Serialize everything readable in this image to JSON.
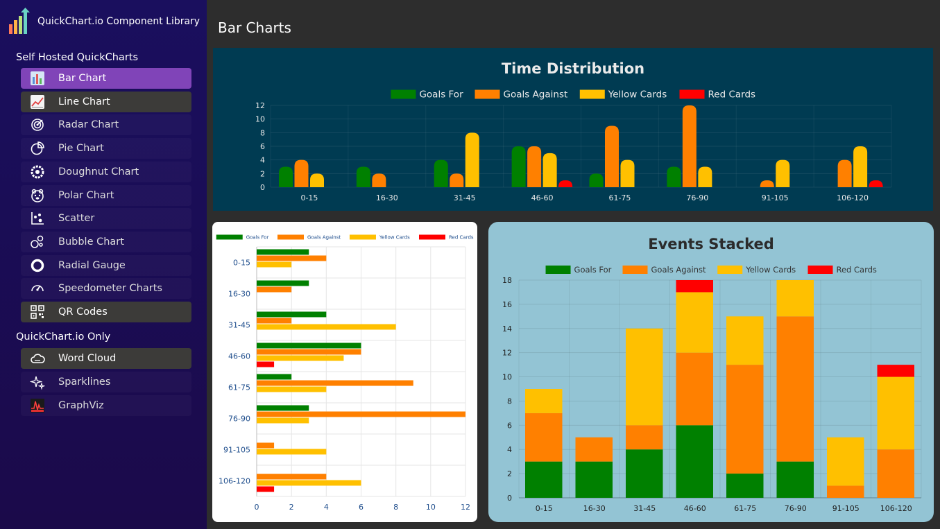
{
  "sidebar": {
    "brand": "QuickChart.io Component Library",
    "section1": "Self Hosted QuickCharts",
    "section2": "QuickChart.io Only",
    "items": [
      {
        "label": "Bar Chart",
        "icon": "bar-chart-icon"
      },
      {
        "label": "Line Chart",
        "icon": "line-chart-icon"
      },
      {
        "label": "Radar Chart",
        "icon": "radar-icon"
      },
      {
        "label": "Pie Chart",
        "icon": "pie-icon"
      },
      {
        "label": "Doughnut Chart",
        "icon": "doughnut-icon"
      },
      {
        "label": "Polar Chart",
        "icon": "polar-icon"
      },
      {
        "label": "Scatter",
        "icon": "scatter-icon"
      },
      {
        "label": "Bubble Chart",
        "icon": "bubble-icon"
      },
      {
        "label": "Radial Gauge",
        "icon": "radial-gauge-icon"
      },
      {
        "label": "Speedometer Charts",
        "icon": "speedometer-icon"
      },
      {
        "label": "QR Codes",
        "icon": "qr-code-icon"
      }
    ],
    "items2": [
      {
        "label": "Word Cloud",
        "icon": "cloud-icon"
      },
      {
        "label": "Sparklines",
        "icon": "sparkles-icon"
      },
      {
        "label": "GraphViz",
        "icon": "graphviz-icon"
      }
    ]
  },
  "main": {
    "title": "Bar Charts"
  },
  "colors": {
    "goals_for": "#008000",
    "goals_against": "#ff8000",
    "yellow_cards": "#ffc000",
    "red_cards": "#ff0000"
  },
  "chart_data": [
    {
      "type": "bar",
      "title": "Time Distribution",
      "categories": [
        "0-15",
        "16-30",
        "31-45",
        "46-60",
        "61-75",
        "76-90",
        "91-105",
        "106-120"
      ],
      "series": [
        {
          "name": "Goals For",
          "values": [
            3,
            3,
            4,
            6,
            2,
            3,
            0,
            0
          ]
        },
        {
          "name": "Goals Against",
          "values": [
            4,
            2,
            2,
            6,
            9,
            12,
            1,
            4
          ]
        },
        {
          "name": "Yellow Cards",
          "values": [
            2,
            0,
            8,
            5,
            4,
            3,
            4,
            6
          ]
        },
        {
          "name": "Red Cards",
          "values": [
            0,
            0,
            0,
            1,
            0,
            0,
            0,
            1
          ]
        }
      ],
      "ylim": [
        0,
        12
      ],
      "yticks": [
        "0",
        "2",
        "4",
        "6",
        "8",
        "10",
        "12"
      ],
      "legend": "top"
    },
    {
      "type": "bar",
      "orientation": "horizontal",
      "title": "",
      "categories": [
        "0-15",
        "16-30",
        "31-45",
        "46-60",
        "61-75",
        "76-90",
        "91-105",
        "106-120"
      ],
      "series": [
        {
          "name": "Goals For",
          "values": [
            3,
            3,
            4,
            6,
            2,
            3,
            0,
            0
          ]
        },
        {
          "name": "Goals Against",
          "values": [
            4,
            2,
            2,
            6,
            9,
            12,
            1,
            4
          ]
        },
        {
          "name": "Yellow Cards",
          "values": [
            2,
            0,
            8,
            5,
            4,
            3,
            4,
            6
          ]
        },
        {
          "name": "Red Cards",
          "values": [
            0,
            0,
            0,
            1,
            0,
            0,
            0,
            1
          ]
        }
      ],
      "xlim": [
        0,
        12
      ],
      "xticks": [
        "0",
        "2",
        "4",
        "6",
        "8",
        "10",
        "12"
      ],
      "legend": "top"
    },
    {
      "type": "bar",
      "stacked": true,
      "title": "Events Stacked",
      "categories": [
        "0-15",
        "16-30",
        "31-45",
        "46-60",
        "61-75",
        "76-90",
        "91-105",
        "106-120"
      ],
      "series": [
        {
          "name": "Goals For",
          "values": [
            3,
            3,
            4,
            6,
            2,
            3,
            0,
            0
          ]
        },
        {
          "name": "Goals Against",
          "values": [
            4,
            2,
            2,
            6,
            9,
            12,
            1,
            4
          ]
        },
        {
          "name": "Yellow Cards",
          "values": [
            2,
            0,
            8,
            5,
            4,
            3,
            4,
            6
          ]
        },
        {
          "name": "Red Cards",
          "values": [
            0,
            0,
            0,
            1,
            0,
            0,
            0,
            1
          ]
        }
      ],
      "ylim": [
        0,
        18
      ],
      "yticks": [
        "0",
        "2",
        "4",
        "6",
        "8",
        "10",
        "12",
        "14",
        "16",
        "18"
      ],
      "legend": "top"
    }
  ]
}
